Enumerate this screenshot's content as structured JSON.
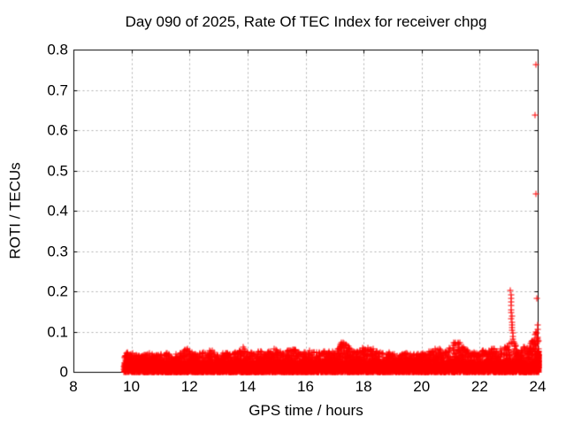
{
  "chart_data": {
    "type": "scatter",
    "title": "Day 090 of 2025, Rate Of TEC Index for receiver chpg",
    "xlabel": "GPS time / hours",
    "ylabel": "ROTI / TECUs",
    "xlim": [
      8,
      24
    ],
    "ylim": [
      0,
      0.8
    ],
    "xticks": [
      8,
      10,
      12,
      14,
      16,
      18,
      20,
      22,
      24
    ],
    "xtick_labels": [
      "8",
      "10",
      "12",
      "14",
      "16",
      "18",
      "20",
      "22",
      "24"
    ],
    "yticks": [
      0,
      0.1,
      0.2,
      0.3,
      0.4,
      0.5,
      0.6,
      0.7,
      0.8
    ],
    "ytick_labels": [
      "0",
      "0.1",
      "0.2",
      "0.3",
      "0.4",
      "0.5",
      "0.6",
      "0.7",
      "0.8"
    ],
    "grid": true,
    "legend_position": "none",
    "marker": "plus",
    "marker_color": "#ff0000",
    "grid_color": "#b0b0b0",
    "axis_color": "#000000",
    "background_color": "#ffffff",
    "data_time_range_hours": [
      9.72,
      24.0
    ],
    "baseline_band_tecus": [
      0.003,
      0.045
    ],
    "envelope_max": [
      [
        9.72,
        0.04
      ],
      [
        9.8,
        0.052
      ],
      [
        9.9,
        0.046
      ],
      [
        10.0,
        0.052
      ],
      [
        10.2,
        0.044
      ],
      [
        10.5,
        0.05
      ],
      [
        10.8,
        0.044
      ],
      [
        11.1,
        0.05
      ],
      [
        11.4,
        0.046
      ],
      [
        11.7,
        0.05
      ],
      [
        11.95,
        0.068
      ],
      [
        12.1,
        0.048
      ],
      [
        12.4,
        0.055
      ],
      [
        12.7,
        0.06
      ],
      [
        12.9,
        0.046
      ],
      [
        13.2,
        0.052
      ],
      [
        13.5,
        0.048
      ],
      [
        13.8,
        0.066
      ],
      [
        14.0,
        0.05
      ],
      [
        14.3,
        0.056
      ],
      [
        14.6,
        0.05
      ],
      [
        14.9,
        0.06
      ],
      [
        15.2,
        0.05
      ],
      [
        15.5,
        0.062
      ],
      [
        15.8,
        0.05
      ],
      [
        16.1,
        0.055
      ],
      [
        16.4,
        0.05
      ],
      [
        16.7,
        0.058
      ],
      [
        17.0,
        0.052
      ],
      [
        17.2,
        0.075
      ],
      [
        17.35,
        0.077
      ],
      [
        17.5,
        0.062
      ],
      [
        17.7,
        0.05
      ],
      [
        18.0,
        0.066
      ],
      [
        18.3,
        0.06
      ],
      [
        18.6,
        0.05
      ],
      [
        18.9,
        0.052
      ],
      [
        19.2,
        0.046
      ],
      [
        19.5,
        0.05
      ],
      [
        19.8,
        0.046
      ],
      [
        20.1,
        0.05
      ],
      [
        20.5,
        0.062
      ],
      [
        20.8,
        0.052
      ],
      [
        21.0,
        0.07
      ],
      [
        21.2,
        0.08
      ],
      [
        21.45,
        0.062
      ],
      [
        21.7,
        0.05
      ],
      [
        22.0,
        0.055
      ],
      [
        22.3,
        0.06
      ],
      [
        22.6,
        0.058
      ],
      [
        22.85,
        0.065
      ],
      [
        23.05,
        0.075
      ],
      [
        23.3,
        0.06
      ],
      [
        23.5,
        0.065
      ],
      [
        23.7,
        0.07
      ],
      [
        23.85,
        0.09
      ],
      [
        23.95,
        0.115
      ],
      [
        24.0,
        0.12
      ]
    ],
    "spike_points": [
      [
        23.03,
        0.205
      ],
      [
        23.04,
        0.194
      ],
      [
        23.05,
        0.184
      ],
      [
        23.06,
        0.175
      ],
      [
        23.05,
        0.166
      ],
      [
        23.07,
        0.157
      ],
      [
        23.06,
        0.149
      ],
      [
        23.08,
        0.141
      ],
      [
        23.07,
        0.133
      ],
      [
        23.08,
        0.126
      ],
      [
        23.09,
        0.119
      ],
      [
        23.1,
        0.112
      ],
      [
        23.09,
        0.105
      ],
      [
        23.11,
        0.098
      ],
      [
        23.12,
        0.091
      ],
      [
        23.13,
        0.084
      ],
      [
        23.15,
        0.078
      ],
      [
        23.17,
        0.073
      ],
      [
        23.2,
        0.068
      ]
    ],
    "outlier_points": [
      [
        23.91,
        0.765
      ],
      [
        23.88,
        0.64
      ],
      [
        23.91,
        0.445
      ],
      [
        23.93,
        0.185
      ],
      [
        23.96,
        0.118
      ],
      [
        23.97,
        0.107
      ],
      [
        23.94,
        0.1
      ]
    ]
  }
}
